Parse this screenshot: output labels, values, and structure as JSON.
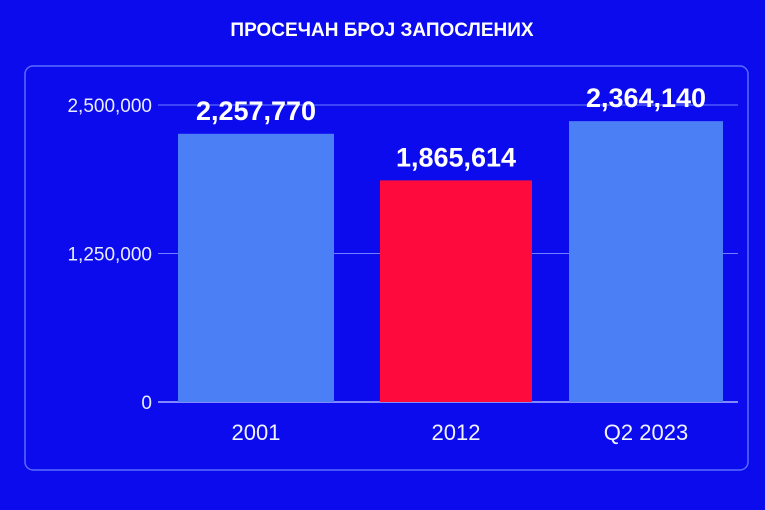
{
  "chart_data": {
    "type": "bar",
    "title": "ПРОСЕЧАН БРОЈ ЗАПОСЛЕНИХ",
    "categories": [
      "2001",
      "2012",
      "Q2 2023"
    ],
    "values": [
      2257770,
      1865614,
      2364140
    ],
    "data_labels": [
      "2,257,770",
      "1,865,614",
      "2,364,140"
    ],
    "bar_colors": [
      "#4a7ff5",
      "#ff0a3c",
      "#4a7ff5"
    ],
    "ylim": [
      0,
      2500000
    ],
    "yticks": [
      0,
      1250000,
      2500000
    ],
    "ytick_labels": [
      "0",
      "1,250,000",
      "2,500,000"
    ],
    "grid": true,
    "xlabel": "",
    "ylabel": "",
    "background_color": "#0b0bee"
  }
}
